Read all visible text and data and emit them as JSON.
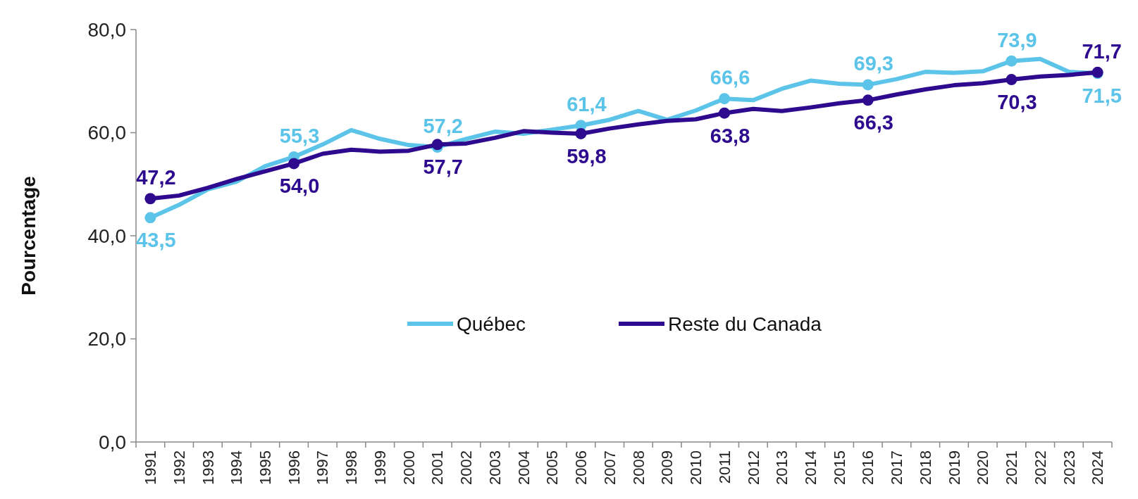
{
  "chart_data": {
    "type": "line",
    "ylabel": "Pourcentage",
    "categories": [
      "1991",
      "1992",
      "1993",
      "1994",
      "1995",
      "1996",
      "1997",
      "1998",
      "1999",
      "2000",
      "2001",
      "2002",
      "2003",
      "2004",
      "2005",
      "2006",
      "2007",
      "2008",
      "2009",
      "2010",
      "2011",
      "2012",
      "2013",
      "2014",
      "2015",
      "2016",
      "2017",
      "2018",
      "2019",
      "2020",
      "2021",
      "2022",
      "2023",
      "2024"
    ],
    "series": [
      {
        "name": "Québec",
        "color": "#5bc4e8",
        "values": [
          43.5,
          46.0,
          49.0,
          50.5,
          53.5,
          55.3,
          57.7,
          60.5,
          58.8,
          57.6,
          57.2,
          58.8,
          60.2,
          59.8,
          60.6,
          61.4,
          62.5,
          64.2,
          62.5,
          64.3,
          66.6,
          66.3,
          68.5,
          70.1,
          69.5,
          69.3,
          70.4,
          71.8,
          71.6,
          71.9,
          73.9,
          74.3,
          71.8,
          71.5
        ],
        "value_labels": [
          "43,5",
          null,
          null,
          null,
          null,
          "55,3",
          null,
          null,
          null,
          null,
          "57,2",
          null,
          null,
          null,
          null,
          "61,4",
          null,
          null,
          null,
          null,
          "66,6",
          null,
          null,
          null,
          null,
          "69,3",
          null,
          null,
          null,
          null,
          "73,9",
          null,
          null,
          "71,5"
        ]
      },
      {
        "name": "Reste du Canada",
        "color": "#2e0a8f",
        "values": [
          47.2,
          47.8,
          49.3,
          51.0,
          52.5,
          54.0,
          55.9,
          56.7,
          56.3,
          56.5,
          57.7,
          57.9,
          59.0,
          60.3,
          60.0,
          59.8,
          60.8,
          61.6,
          62.3,
          62.6,
          63.8,
          64.6,
          64.2,
          64.9,
          65.7,
          66.3,
          67.4,
          68.4,
          69.2,
          69.6,
          70.3,
          70.9,
          71.2,
          71.7
        ],
        "value_labels": [
          "47,2",
          null,
          null,
          null,
          null,
          "54,0",
          null,
          null,
          null,
          null,
          "57,7",
          null,
          null,
          null,
          null,
          "59,8",
          null,
          null,
          null,
          null,
          "63,8",
          null,
          null,
          null,
          null,
          "66,3",
          null,
          null,
          null,
          null,
          "70,3",
          null,
          null,
          "71,7"
        ]
      }
    ],
    "ylim": [
      0,
      80
    ],
    "yticks": [
      {
        "value": 0,
        "label": "0,0"
      },
      {
        "value": 20,
        "label": "20,0"
      },
      {
        "value": 40,
        "label": "40,0"
      },
      {
        "value": 60,
        "label": "60,0"
      },
      {
        "value": 80,
        "label": "80,0"
      }
    ],
    "legend": "bottom",
    "line_style": "solid"
  }
}
